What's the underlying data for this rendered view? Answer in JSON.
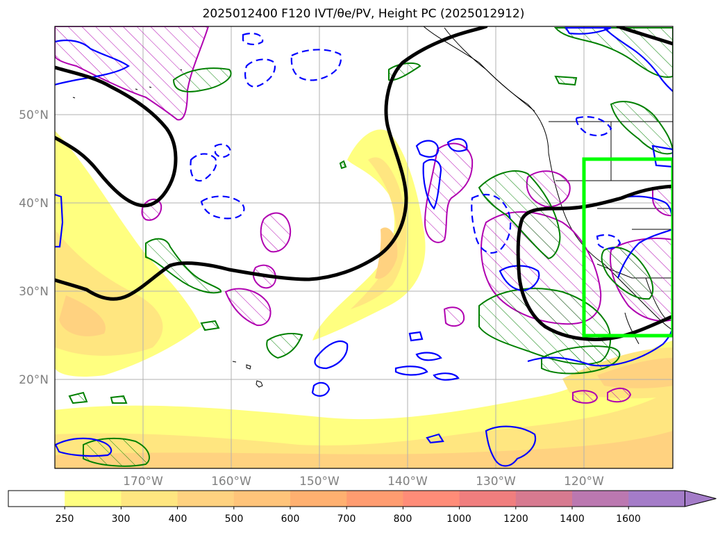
{
  "title": "2025012400 F120 IVT/θe/PV, Height PC (2025012912)",
  "map": {
    "lat_labels": [
      "50°N",
      "40°N",
      "30°N",
      "20°N"
    ],
    "lon_labels": [
      "170°W",
      "160°W",
      "150°W",
      "140°W",
      "130°W",
      "120°W"
    ],
    "lat_values": [
      50,
      40,
      30,
      20
    ],
    "lon_values": [
      -170,
      -160,
      -150,
      -140,
      -130,
      -120
    ],
    "extent": {
      "lon_min": -180,
      "lon_max": -110,
      "lat_min": 10,
      "lat_max": 60
    },
    "highlight_box": {
      "lon_min": -120,
      "lon_max": -110,
      "lat_min": 25,
      "lat_max": 45,
      "color": "#00ff00"
    },
    "layers": [
      "IVT",
      "theta_e",
      "PV",
      "Height PC"
    ]
  },
  "colorbar": {
    "ticks": [
      "250",
      "300",
      "400",
      "500",
      "600",
      "700",
      "800",
      "1000",
      "1200",
      "1400",
      "1600"
    ],
    "colors": [
      "#ffffff",
      "#ffff80",
      "#ffe680",
      "#ffd280",
      "#ffc47a",
      "#ffb070",
      "#ff9c70",
      "#ff8c78",
      "#f07e7e",
      "#d77a90",
      "#bb78b0",
      "#a47cc8"
    ],
    "extend": "max"
  }
}
